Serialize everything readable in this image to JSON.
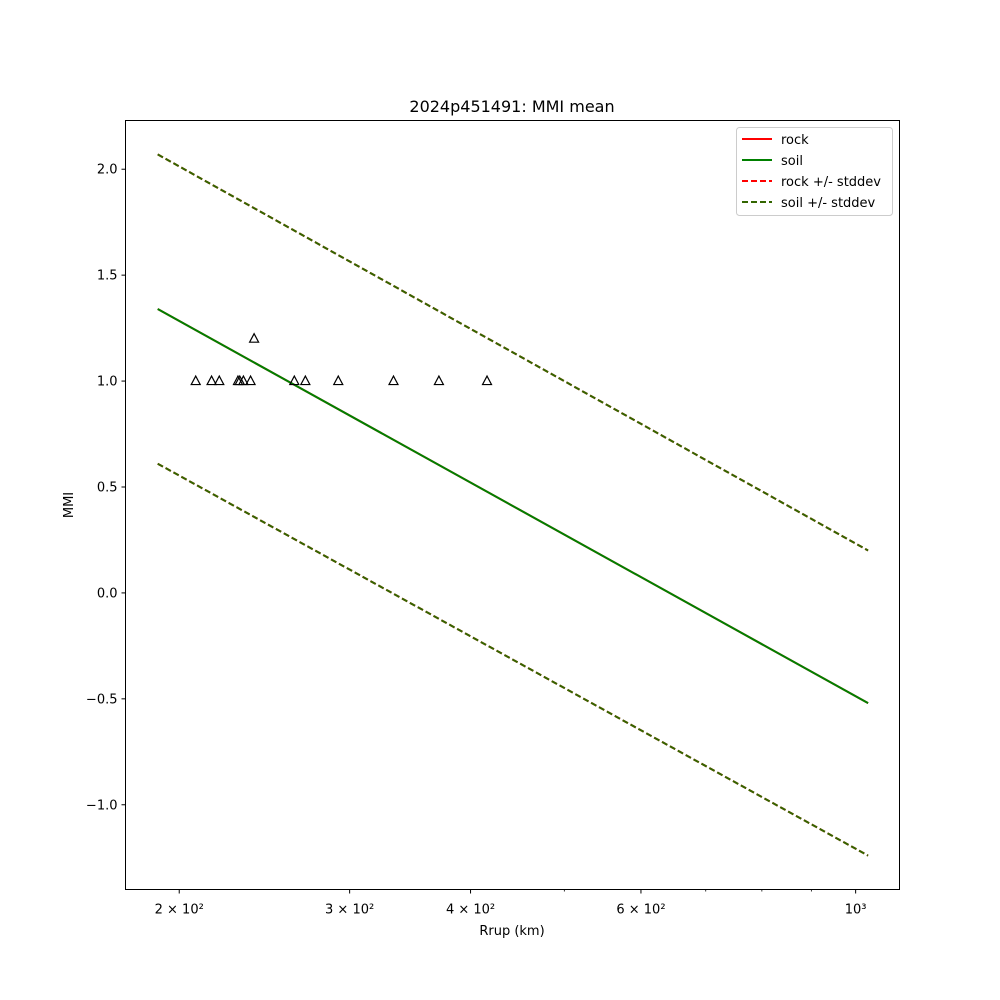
{
  "chart_data": {
    "type": "line",
    "title": "2024p451491: MMI mean",
    "xlabel": "Rrup (km)",
    "ylabel": "MMI",
    "x_scale": "log",
    "xlim": [
      176,
      1110
    ],
    "ylim": [
      -1.4,
      2.23
    ],
    "x_ticks": [
      {
        "value": 200,
        "label": "2 × 10²"
      },
      {
        "value": 300,
        "label": "3 × 10²"
      },
      {
        "value": 400,
        "label": "4 × 10²"
      },
      {
        "value": 600,
        "label": "6 × 10²"
      },
      {
        "value": 1000,
        "label": "10³"
      }
    ],
    "x_minor_ticks": [
      500,
      700,
      800,
      900
    ],
    "y_ticks": [
      {
        "value": -1.0,
        "label": "−1.0"
      },
      {
        "value": -0.5,
        "label": "−0.5"
      },
      {
        "value": 0.0,
        "label": "0.0"
      },
      {
        "value": 0.5,
        "label": "0.5"
      },
      {
        "value": 1.0,
        "label": "1.0"
      },
      {
        "value": 1.5,
        "label": "1.5"
      },
      {
        "value": 2.0,
        "label": "2.0"
      }
    ],
    "grid": false,
    "legend_position": "top-right",
    "series": [
      {
        "name": "rock",
        "color": "#ff0000",
        "style": "solid",
        "x": [
          190,
          1030
        ],
        "y": [
          1.34,
          -0.52
        ]
      },
      {
        "name": "soil",
        "color": "#008000",
        "style": "solid",
        "x": [
          190,
          1030
        ],
        "y": [
          1.34,
          -0.52
        ]
      },
      {
        "name": "rock +/- stddev",
        "color": "#ff0000",
        "style": "dashed",
        "x": [
          190,
          1030
        ],
        "y": [
          2.07,
          0.2
        ]
      },
      {
        "name": "rock +/- stddev",
        "color": "#ff0000",
        "style": "dashed",
        "x": [
          190,
          1030
        ],
        "y": [
          0.61,
          -1.24
        ]
      },
      {
        "name": "soil +/- stddev",
        "color": "#336600",
        "style": "dashed",
        "x": [
          190,
          1030
        ],
        "y": [
          2.07,
          0.2
        ]
      },
      {
        "name": "soil +/- stddev",
        "color": "#336600",
        "style": "dashed",
        "x": [
          190,
          1030
        ],
        "y": [
          0.61,
          -1.24
        ]
      }
    ],
    "observations": {
      "marker": "triangle",
      "color": "#000000",
      "x": [
        208,
        216,
        220,
        230,
        231,
        233,
        237,
        239,
        263,
        270,
        292,
        333,
        371,
        416
      ],
      "y": [
        1.0,
        1.0,
        1.0,
        1.0,
        1.0,
        1.0,
        1.0,
        1.2,
        1.0,
        1.0,
        1.0,
        1.0,
        1.0,
        1.0
      ]
    }
  }
}
